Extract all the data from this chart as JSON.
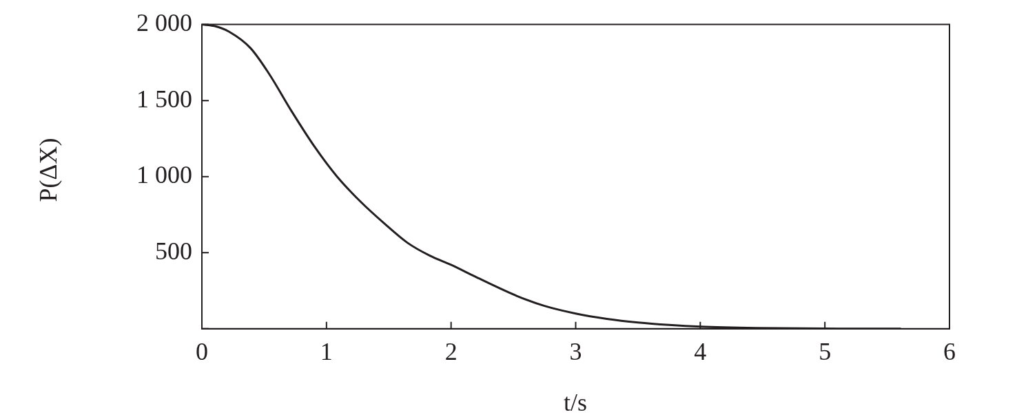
{
  "chart_data": {
    "type": "line",
    "xlabel": "t/s",
    "ylabel": "P(ΔX)",
    "x": [
      0,
      0.1,
      0.22,
      0.39,
      0.54,
      0.72,
      0.91,
      1.09,
      1.28,
      1.46,
      1.65,
      1.83,
      2,
      2.2,
      2.53,
      2.75,
      3,
      3.25,
      3.5,
      3.75,
      4,
      4.45,
      5,
      5.61
    ],
    "series": [
      {
        "color": "#231f20",
        "values": [
          2000,
          1990,
          1952,
          1845,
          1675,
          1430,
          1190,
          995,
          830,
          695,
          565,
          480,
          420,
          340,
          215,
          150,
          100,
          65,
          41,
          25,
          14,
          5,
          1,
          0
        ]
      }
    ],
    "xlim": [
      0,
      6
    ],
    "xticks": [
      0,
      1,
      2,
      3,
      4,
      5,
      6
    ],
    "ylim": [
      0,
      2000
    ],
    "yticks": [
      {
        "value": 0,
        "label": null
      },
      {
        "value": 500,
        "label": "500"
      },
      {
        "value": 1000,
        "label": "1 000"
      },
      {
        "value": 1500,
        "label": "1 500"
      },
      {
        "value": 2000,
        "label": "2 000"
      }
    ],
    "grid": false,
    "legend": false,
    "marker": "none",
    "line_style": "solid"
  }
}
